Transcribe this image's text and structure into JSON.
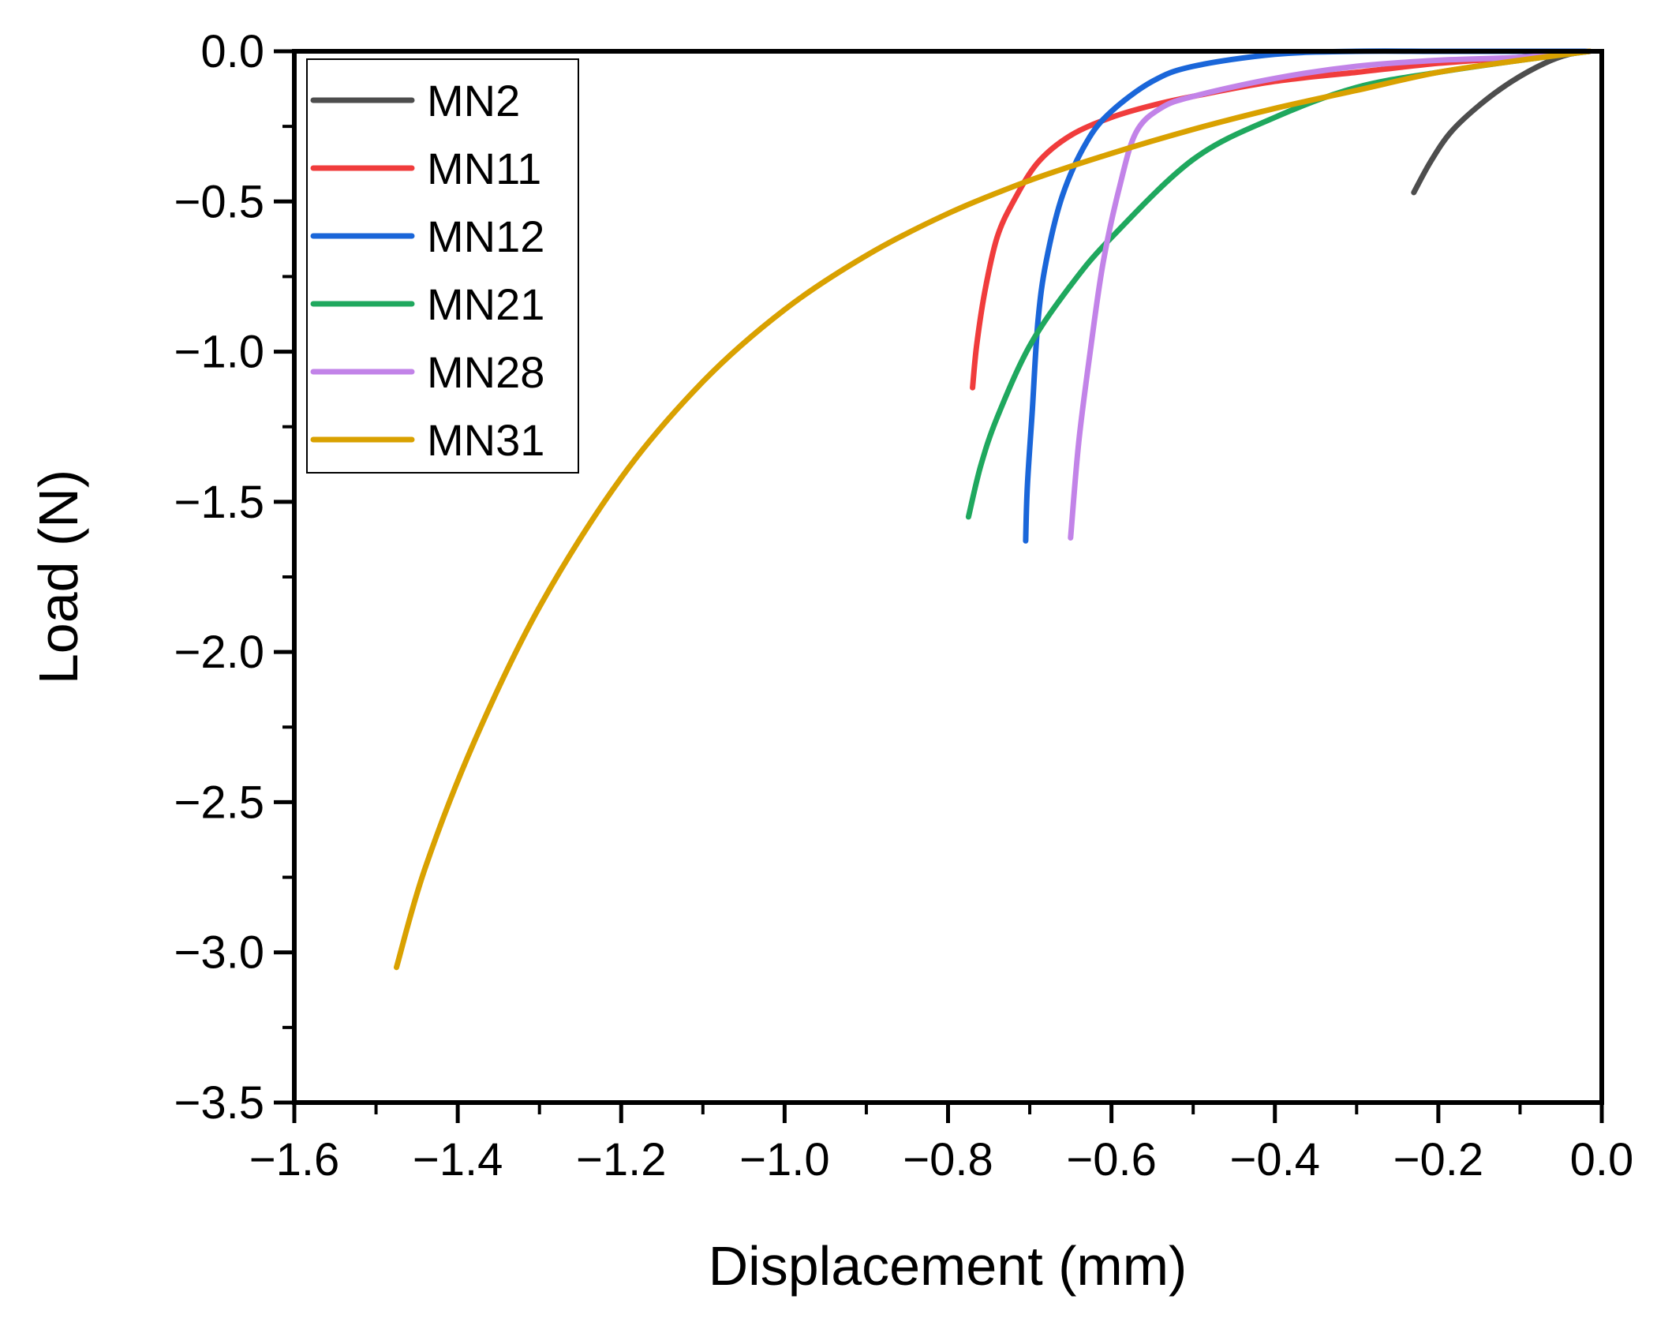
{
  "chart_data": {
    "type": "line",
    "title": "",
    "xlabel": "Displacement (mm)",
    "ylabel": "Load (N)",
    "xlim": [
      -1.6,
      0.0
    ],
    "ylim": [
      -3.5,
      0.0
    ],
    "grid": false,
    "legend_position": "top-left",
    "x_ticks": [
      "−1.6",
      "−1.4",
      "−1.2",
      "−1.0",
      "−0.8",
      "−0.6",
      "−0.4",
      "−0.2",
      "0.0"
    ],
    "y_ticks": [
      "0.0",
      "−0.5",
      "−1.0",
      "−1.5",
      "−2.0",
      "−2.5",
      "−3.0",
      "−3.5"
    ],
    "series": [
      {
        "name": "MN2",
        "color": "#4d4d4d",
        "points": [
          [
            -0.015,
            0.0
          ],
          [
            -0.04,
            -0.01
          ],
          [
            -0.07,
            -0.04
          ],
          [
            -0.11,
            -0.1
          ],
          [
            -0.15,
            -0.18
          ],
          [
            -0.185,
            -0.27
          ],
          [
            -0.21,
            -0.37
          ],
          [
            -0.23,
            -0.47
          ]
        ]
      },
      {
        "name": "MN11",
        "color": "#f03c3c",
        "points": [
          [
            -0.015,
            0.0
          ],
          [
            -0.1,
            -0.02
          ],
          [
            -0.2,
            -0.04
          ],
          [
            -0.3,
            -0.07
          ],
          [
            -0.4,
            -0.1
          ],
          [
            -0.5,
            -0.15
          ],
          [
            -0.55,
            -0.18
          ],
          [
            -0.6,
            -0.22
          ],
          [
            -0.65,
            -0.28
          ],
          [
            -0.69,
            -0.37
          ],
          [
            -0.72,
            -0.5
          ],
          [
            -0.74,
            -0.62
          ],
          [
            -0.755,
            -0.8
          ],
          [
            -0.765,
            -0.98
          ],
          [
            -0.77,
            -1.12
          ]
        ]
      },
      {
        "name": "MN12",
        "color": "#1a66d9",
        "points": [
          [
            -0.015,
            0.0
          ],
          [
            -0.1,
            0.0
          ],
          [
            -0.2,
            0.0
          ],
          [
            -0.3,
            0.0
          ],
          [
            -0.4,
            -0.01
          ],
          [
            -0.5,
            -0.05
          ],
          [
            -0.55,
            -0.1
          ],
          [
            -0.6,
            -0.2
          ],
          [
            -0.63,
            -0.3
          ],
          [
            -0.66,
            -0.48
          ],
          [
            -0.68,
            -0.7
          ],
          [
            -0.69,
            -0.9
          ],
          [
            -0.697,
            -1.2
          ],
          [
            -0.703,
            -1.45
          ],
          [
            -0.705,
            -1.63
          ]
        ]
      },
      {
        "name": "MN21",
        "color": "#1fa85e",
        "points": [
          [
            -0.015,
            0.0
          ],
          [
            -0.1,
            -0.03
          ],
          [
            -0.2,
            -0.07
          ],
          [
            -0.3,
            -0.12
          ],
          [
            -0.4,
            -0.22
          ],
          [
            -0.5,
            -0.36
          ],
          [
            -0.6,
            -0.62
          ],
          [
            -0.65,
            -0.78
          ],
          [
            -0.7,
            -0.98
          ],
          [
            -0.74,
            -1.22
          ],
          [
            -0.76,
            -1.38
          ],
          [
            -0.775,
            -1.55
          ]
        ]
      },
      {
        "name": "MN28",
        "color": "#c283e8",
        "points": [
          [
            -0.015,
            0.0
          ],
          [
            -0.1,
            -0.02
          ],
          [
            -0.2,
            -0.03
          ],
          [
            -0.3,
            -0.05
          ],
          [
            -0.4,
            -0.09
          ],
          [
            -0.5,
            -0.15
          ],
          [
            -0.54,
            -0.19
          ],
          [
            -0.57,
            -0.27
          ],
          [
            -0.59,
            -0.45
          ],
          [
            -0.61,
            -0.7
          ],
          [
            -0.625,
            -0.98
          ],
          [
            -0.64,
            -1.3
          ],
          [
            -0.65,
            -1.62
          ]
        ]
      },
      {
        "name": "MN31",
        "color": "#d9a100",
        "points": [
          [
            -0.015,
            0.0
          ],
          [
            -0.1,
            -0.03
          ],
          [
            -0.2,
            -0.07
          ],
          [
            -0.3,
            -0.13
          ],
          [
            -0.4,
            -0.19
          ],
          [
            -0.5,
            -0.26
          ],
          [
            -0.6,
            -0.34
          ],
          [
            -0.7,
            -0.43
          ],
          [
            -0.8,
            -0.54
          ],
          [
            -0.9,
            -0.68
          ],
          [
            -1.0,
            -0.86
          ],
          [
            -1.1,
            -1.1
          ],
          [
            -1.2,
            -1.42
          ],
          [
            -1.3,
            -1.85
          ],
          [
            -1.38,
            -2.3
          ],
          [
            -1.44,
            -2.72
          ],
          [
            -1.475,
            -3.05
          ]
        ]
      }
    ]
  }
}
